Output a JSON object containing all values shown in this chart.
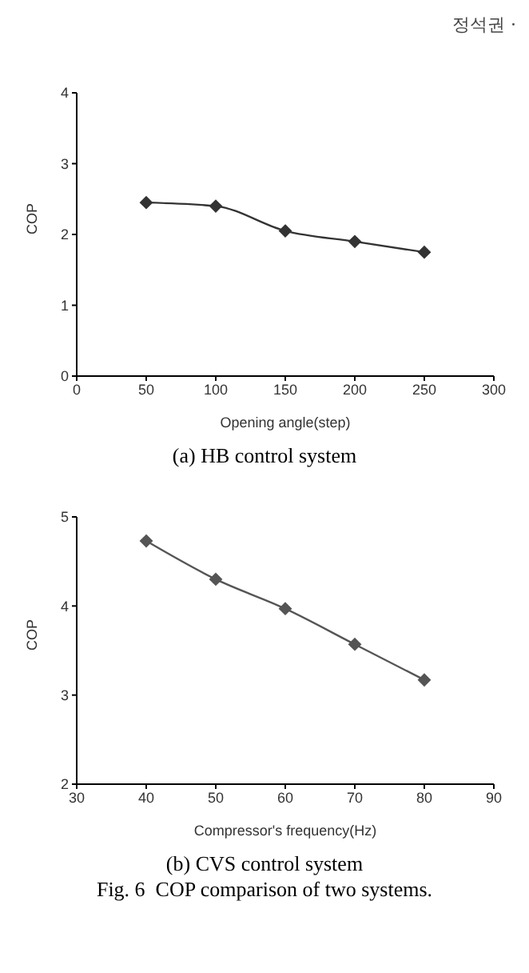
{
  "chart_data": [
    {
      "type": "line",
      "title": "(a) HB control system",
      "xlabel": "Opening angle(step)",
      "ylabel": "COP",
      "annotations": [
        "정석권 ·"
      ],
      "x": [
        50,
        100,
        150,
        200,
        250
      ],
      "series": [
        {
          "color": "#333333",
          "values": [
            2.45,
            2.4,
            2.05,
            1.9,
            1.75
          ]
        }
      ],
      "xlim": [
        0,
        300
      ],
      "xticks": [
        0,
        50,
        100,
        150,
        200,
        250,
        300
      ],
      "ylim": [
        0,
        4
      ],
      "yticks": [
        0,
        1,
        2,
        3,
        4
      ],
      "grid": false,
      "legend": false,
      "marker": "diamond",
      "line_style": "solid"
    },
    {
      "type": "line",
      "title": "(b) CVS control system",
      "xlabel": "Compressor's frequency(Hz)",
      "ylabel": "COP",
      "annotations": [
        "Fig. 6  COP comparison of two systems."
      ],
      "x": [
        40,
        50,
        60,
        70,
        80
      ],
      "series": [
        {
          "color": "#555555",
          "values": [
            4.73,
            4.3,
            3.97,
            3.57,
            3.17
          ]
        }
      ],
      "xlim": [
        30,
        90
      ],
      "xticks": [
        30,
        40,
        50,
        60,
        70,
        80,
        90
      ],
      "ylim": [
        2,
        5
      ],
      "yticks": [
        2,
        3,
        4,
        5
      ],
      "grid": false,
      "legend": false,
      "marker": "diamond",
      "line_style": "solid"
    }
  ]
}
